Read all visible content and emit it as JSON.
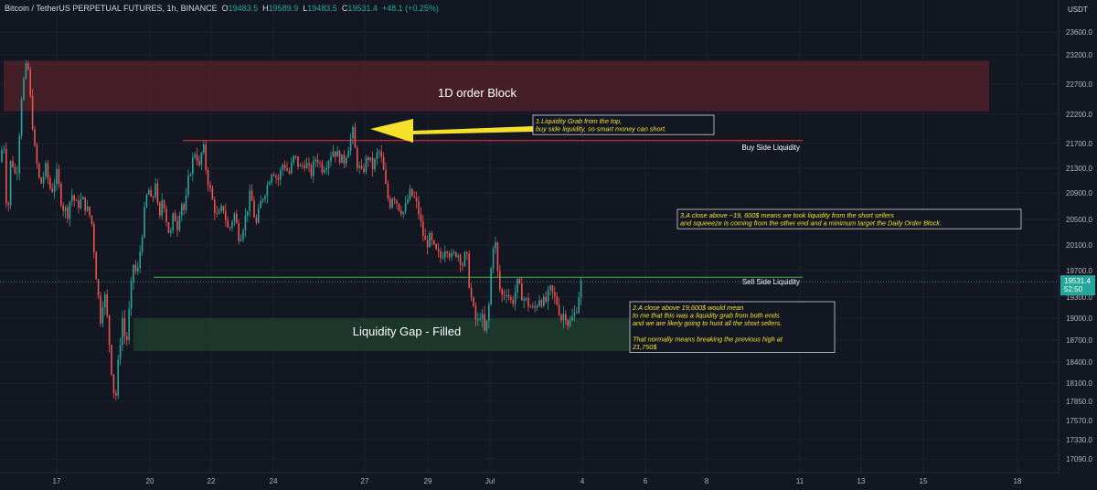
{
  "header": {
    "symbol": "Bitcoin / TetherUS PERPETUAL FUTURES, 1h, BINANCE",
    "o_label": "O",
    "o_value": "19483.5",
    "h_label": "H",
    "h_value": "19589.9",
    "l_label": "L",
    "l_value": "19483.5",
    "c_label": "C",
    "c_value": "19531.4",
    "change": "+48.1 (+0.25%)"
  },
  "currency": "USDT",
  "chart_data": {
    "type": "candlestick",
    "title": "Bitcoin / TetherUS PERPETUAL FUTURES, 1h, BINANCE",
    "price_axis": {
      "ticks": [
        23600,
        23200,
        22700,
        22200,
        21700,
        21300,
        20900,
        20500,
        20100,
        19700,
        19300,
        19000,
        18700,
        18400,
        18100,
        17850,
        17570,
        17330,
        17090
      ],
      "tick_labels": [
        "23600.0",
        "23200.0",
        "22700.0",
        "22200.0",
        "21700.0",
        "21300.0",
        "20900.0",
        "20500.0",
        "20100.0",
        "19700.0",
        "19300.0",
        "19000.0",
        "18700.0",
        "18400.0",
        "18100.0",
        "17850.0",
        "17570.0",
        "17330.0",
        "17090.0"
      ],
      "range": [
        16800,
        24000
      ]
    },
    "time_axis": {
      "labels": [
        "17",
        "20",
        "22",
        "24",
        "27",
        "29",
        "Jul",
        "4",
        "6",
        "8",
        "11",
        "13",
        "15",
        "18"
      ]
    },
    "current_price": {
      "value": 19531.4,
      "label": "19531.4",
      "countdown": "52:50"
    },
    "approx_path": [
      [
        0,
        21400
      ],
      [
        4,
        21800
      ],
      [
        8,
        20400
      ],
      [
        12,
        21500
      ],
      [
        18,
        21100
      ],
      [
        24,
        22600
      ],
      [
        30,
        23100
      ],
      [
        34,
        22300
      ],
      [
        38,
        21600
      ],
      [
        44,
        21000
      ],
      [
        50,
        21300
      ],
      [
        56,
        20900
      ],
      [
        62,
        21200
      ],
      [
        68,
        20700
      ],
      [
        74,
        20600
      ],
      [
        78,
        20900
      ],
      [
        84,
        20700
      ],
      [
        90,
        20800
      ],
      [
        100,
        20500
      ],
      [
        106,
        19500
      ],
      [
        110,
        19000
      ],
      [
        114,
        19400
      ],
      [
        118,
        18900
      ],
      [
        122,
        18300
      ],
      [
        126,
        17800
      ],
      [
        130,
        18500
      ],
      [
        134,
        19000
      ],
      [
        138,
        18600
      ],
      [
        142,
        19200
      ],
      [
        146,
        19800
      ],
      [
        150,
        19600
      ],
      [
        154,
        20100
      ],
      [
        158,
        20600
      ],
      [
        162,
        21000
      ],
      [
        166,
        20700
      ],
      [
        170,
        21100
      ],
      [
        174,
        20400
      ],
      [
        178,
        20900
      ],
      [
        182,
        20500
      ],
      [
        186,
        20200
      ],
      [
        190,
        20600
      ],
      [
        194,
        20400
      ],
      [
        198,
        20800
      ],
      [
        202,
        20600
      ],
      [
        206,
        21100
      ],
      [
        210,
        21400
      ],
      [
        214,
        21600
      ],
      [
        218,
        21300
      ],
      [
        222,
        21700
      ],
      [
        226,
        21200
      ],
      [
        232,
        20800
      ],
      [
        238,
        20500
      ],
      [
        244,
        20700
      ],
      [
        250,
        20300
      ],
      [
        256,
        20600
      ],
      [
        262,
        20200
      ],
      [
        268,
        20500
      ],
      [
        274,
        20900
      ],
      [
        280,
        20400
      ],
      [
        286,
        20800
      ],
      [
        292,
        21000
      ],
      [
        298,
        21300
      ],
      [
        304,
        21100
      ],
      [
        310,
        21400
      ],
      [
        316,
        21200
      ],
      [
        322,
        21500
      ],
      [
        328,
        21300
      ],
      [
        334,
        21400
      ],
      [
        340,
        21200
      ],
      [
        346,
        21500
      ],
      [
        352,
        21300
      ],
      [
        358,
        21400
      ],
      [
        364,
        21600
      ],
      [
        370,
        21500
      ],
      [
        376,
        21400
      ],
      [
        380,
        21600
      ],
      [
        386,
        21900
      ],
      [
        390,
        21400
      ],
      [
        396,
        21200
      ],
      [
        402,
        21500
      ],
      [
        408,
        21300
      ],
      [
        414,
        21600
      ],
      [
        418,
        21400
      ],
      [
        422,
        21000
      ],
      [
        426,
        20700
      ],
      [
        430,
        20900
      ],
      [
        436,
        20700
      ],
      [
        442,
        20600
      ],
      [
        448,
        20900
      ],
      [
        454,
        20800
      ],
      [
        458,
        20600
      ],
      [
        462,
        20300
      ],
      [
        466,
        20100
      ],
      [
        470,
        20200
      ],
      [
        476,
        20000
      ],
      [
        482,
        19900
      ],
      [
        488,
        20100
      ],
      [
        494,
        19900
      ],
      [
        500,
        20000
      ],
      [
        506,
        19800
      ],
      [
        510,
        20000
      ],
      [
        514,
        19400
      ],
      [
        518,
        19100
      ],
      [
        522,
        18900
      ],
      [
        526,
        19100
      ],
      [
        530,
        18800
      ],
      [
        534,
        19000
      ],
      [
        538,
        19900
      ],
      [
        541,
        20300
      ],
      [
        544,
        19700
      ],
      [
        548,
        19300
      ],
      [
        554,
        19400
      ],
      [
        560,
        19200
      ],
      [
        566,
        19500
      ],
      [
        572,
        19300
      ],
      [
        578,
        19200
      ],
      [
        584,
        19100
      ],
      [
        590,
        19300
      ],
      [
        596,
        19200
      ],
      [
        602,
        19400
      ],
      [
        606,
        19300
      ],
      [
        610,
        19200
      ],
      [
        614,
        19000
      ],
      [
        618,
        19100
      ],
      [
        622,
        18900
      ],
      [
        626,
        19000
      ],
      [
        630,
        19100
      ],
      [
        634,
        19400
      ],
      [
        636,
        19530
      ]
    ],
    "zones": [
      {
        "name": "1D order Block",
        "low": 22250,
        "high": 23100,
        "color": "#4a2029"
      },
      {
        "name": "Liquidity Gap - Filled",
        "low": 18550,
        "high": 19000,
        "color": "#1f3a2c"
      }
    ],
    "levels": [
      {
        "name": "Buy Side Liquidity",
        "price": 21750,
        "color": "#f23645"
      },
      {
        "name": "Sell Side Liquidity",
        "price": 19600,
        "color": "#4caf50"
      }
    ],
    "annotations": [
      {
        "id": "note1",
        "lines": [
          "1.Liquidity Grab from the top,",
          "buy side liquidity, so smart money can short."
        ]
      },
      {
        "id": "note2",
        "lines": [
          "2.A close above 19,600$ would mean",
          "to me that this was a liquidity grab from both ends",
          "and we are likely going to hunt all the short sellers.",
          "",
          "That normally means breaking the previous high at",
          "21,750$"
        ]
      },
      {
        "id": "note3",
        "lines": [
          "3.A close above ~19, 600$ means we took liquidity from the short sellers",
          "and squeeeze is coming from the other end and a minimum target the Daily Order Block."
        ]
      }
    ],
    "arrow": {
      "color": "#f5e12b",
      "direction": "left"
    }
  }
}
